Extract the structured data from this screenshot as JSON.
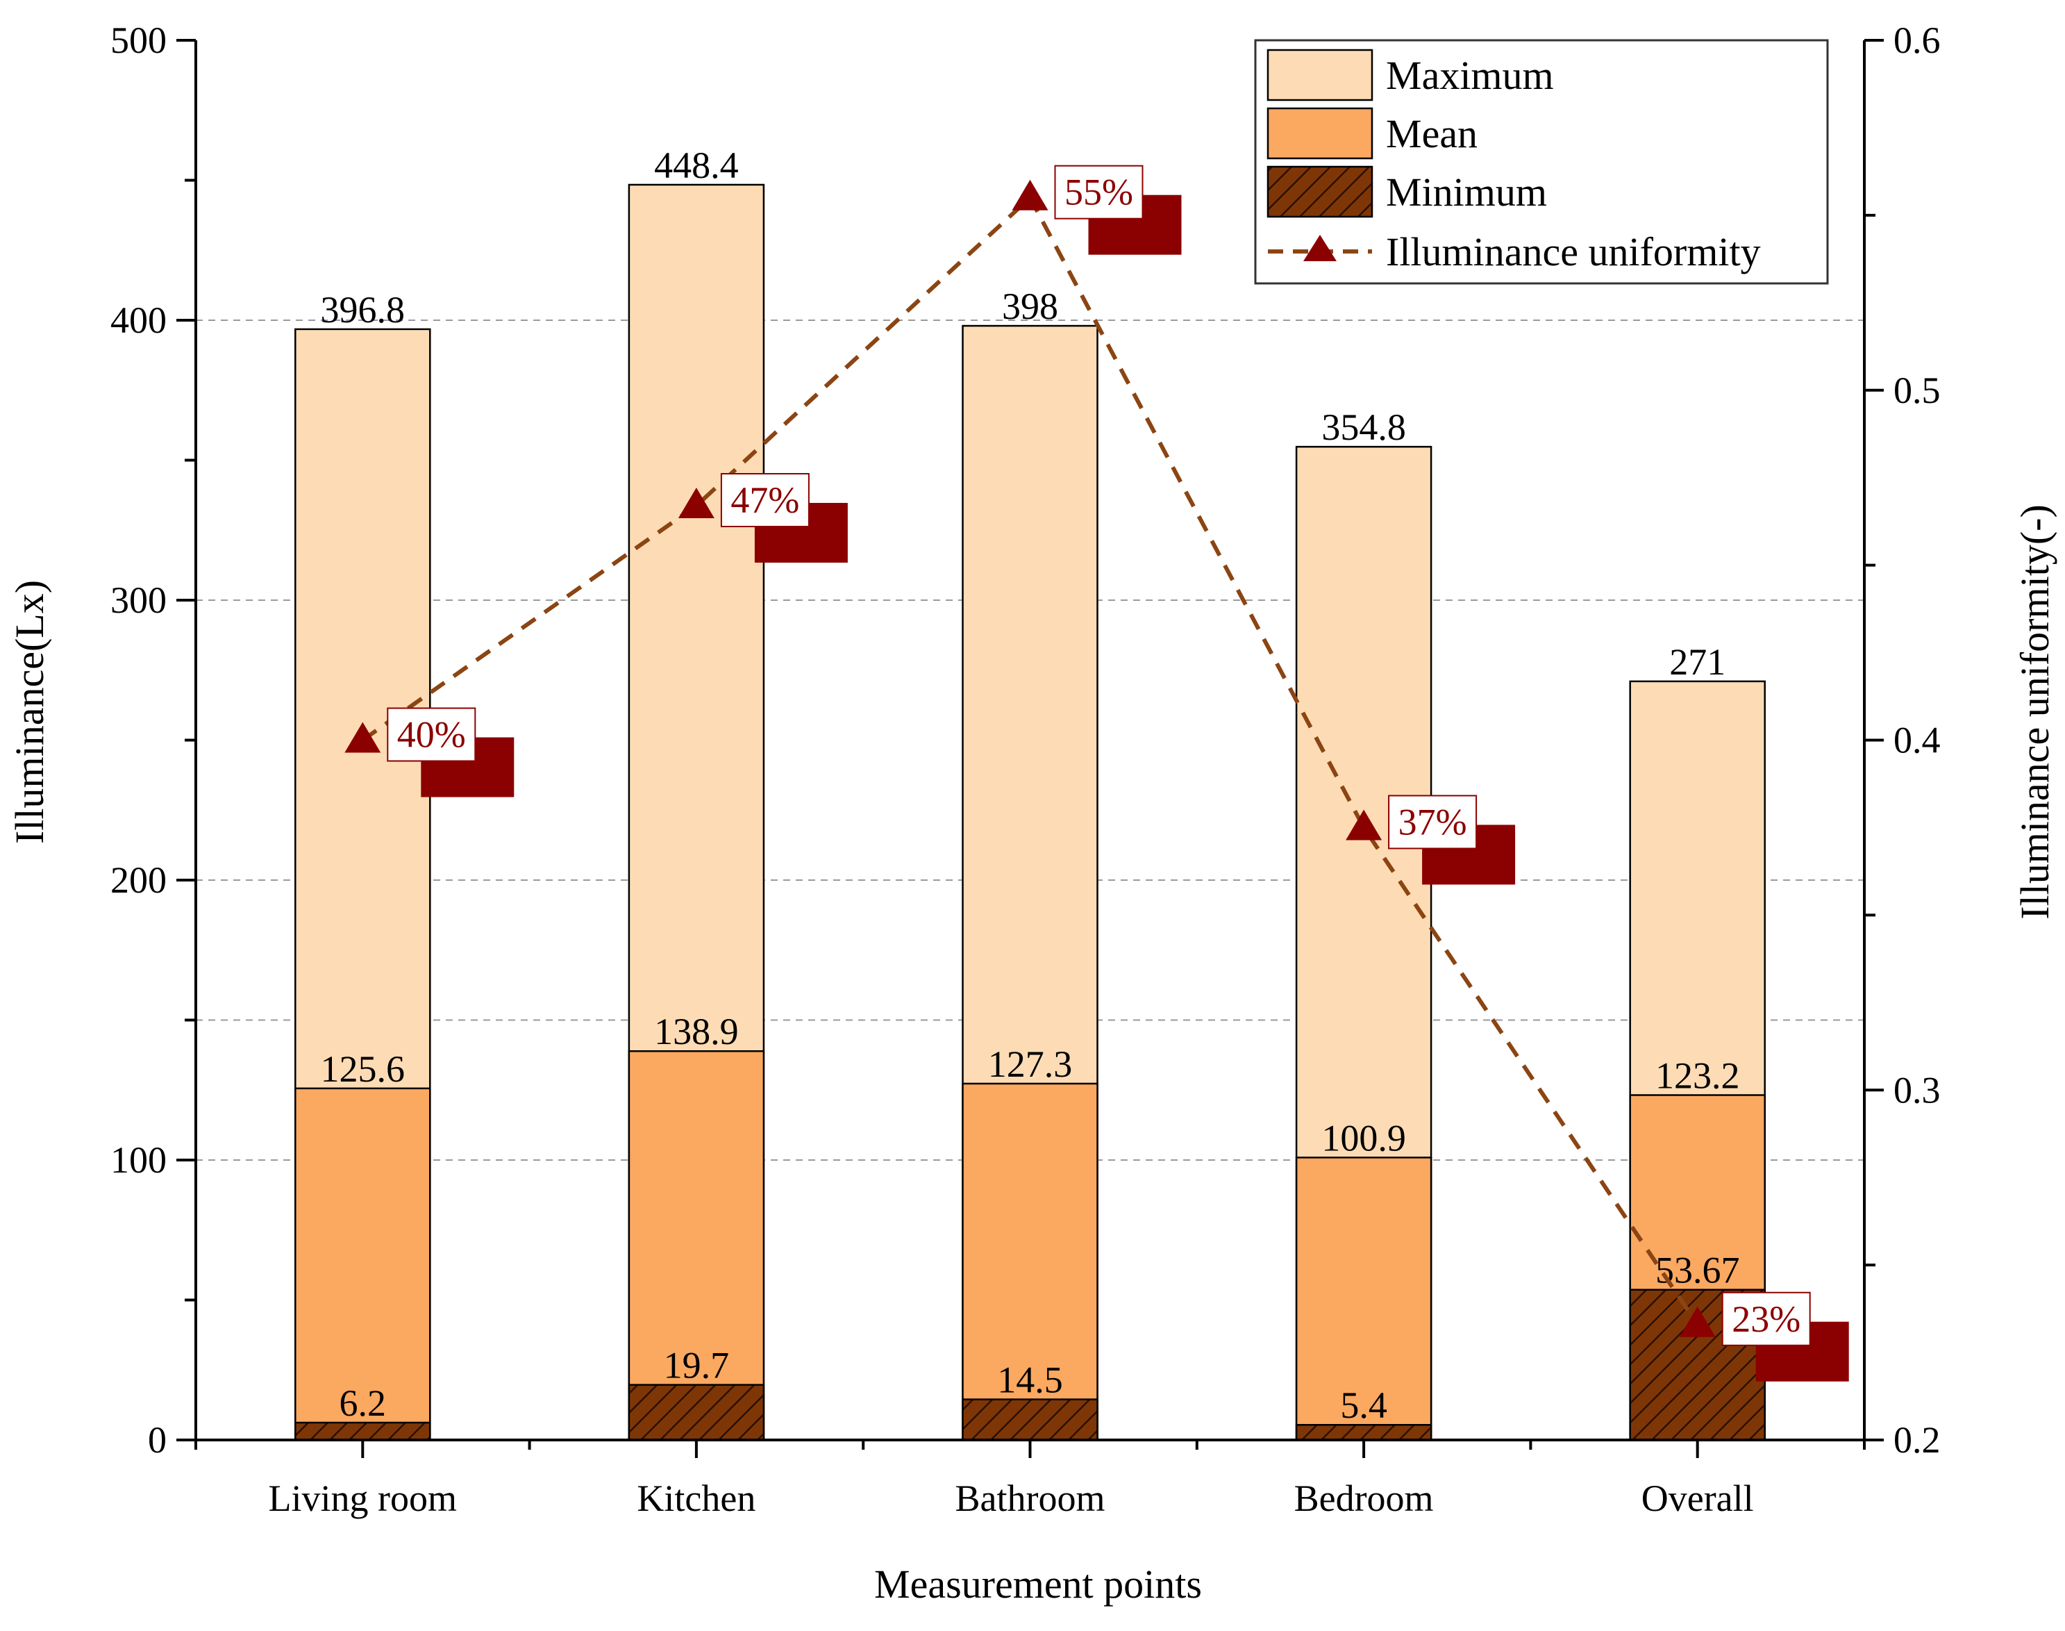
{
  "chart_data": {
    "type": "bar",
    "stacked_style": "overlay",
    "categories": [
      "Living room",
      "Kitchen",
      "Bathroom",
      "Bedroom",
      "Overall"
    ],
    "series": [
      {
        "name": "Maximum",
        "values": [
          396.8,
          448.4,
          398,
          354.8,
          271
        ],
        "labels": [
          "396.8",
          "448.4",
          "398",
          "354.8",
          "271"
        ],
        "color": "#FDDCB5"
      },
      {
        "name": "Mean",
        "values": [
          125.6,
          138.9,
          127.3,
          100.9,
          123.2
        ],
        "labels": [
          "125.6",
          "138.9",
          "127.3",
          "100.9",
          "123.2"
        ],
        "color": "#FBA861"
      },
      {
        "name": "Minimum",
        "values": [
          6.2,
          19.7,
          14.5,
          5.4,
          53.67
        ],
        "labels": [
          "6.2",
          "19.7",
          "14.5",
          "5.4",
          "53.67"
        ],
        "color": "#7F3606",
        "pattern": "hatch"
      }
    ],
    "line_series": {
      "name": "Illuminance uniformity",
      "axis": "right",
      "values": [
        0.4,
        0.467,
        0.555,
        0.375,
        0.233
      ],
      "labels": [
        "40%",
        "47%",
        "55%",
        "37%",
        "23%"
      ],
      "color": "#8B0000",
      "line_color": "#8B4513",
      "style": "dashed",
      "marker": "triangle"
    },
    "xlabel": "Measurement points",
    "ylabel": "Illuminance(Lx)",
    "y2label": "Illuminance uniformity(-)",
    "ylim": [
      0,
      500
    ],
    "y2lim": [
      0.2,
      0.6
    ],
    "yticks": [
      "0",
      "100",
      "200",
      "300",
      "400",
      "500"
    ],
    "y2ticks": [
      "0.2",
      "0.3",
      "0.4",
      "0.5",
      "0.6"
    ],
    "gridlines": [
      100,
      150,
      200,
      300,
      400
    ],
    "legend": {
      "position": "top-right",
      "entries": [
        "Maximum",
        "Mean",
        "Minimum",
        "Illuminance uniformity"
      ]
    }
  }
}
